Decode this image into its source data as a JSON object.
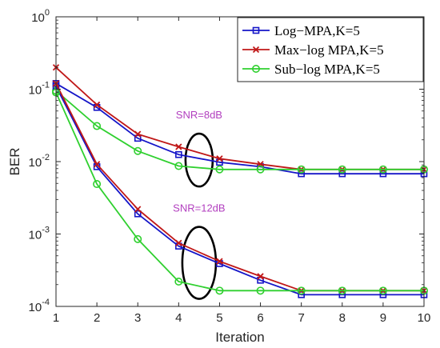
{
  "chart_data": {
    "type": "line",
    "title": "",
    "xlabel": "Iteration",
    "ylabel": "BER",
    "xlim": [
      1,
      10
    ],
    "ylim": [
      0.0001,
      1
    ],
    "yscale": "log",
    "x_ticks": [
      1,
      2,
      3,
      4,
      5,
      6,
      7,
      8,
      9,
      10
    ],
    "y_ticks": [
      {
        "value": 0.0001,
        "mantissa": "10",
        "exponent": "-4"
      },
      {
        "value": 0.001,
        "mantissa": "10",
        "exponent": "-3"
      },
      {
        "value": 0.01,
        "mantissa": "10",
        "exponent": "-2"
      },
      {
        "value": 0.1,
        "mantissa": "10",
        "exponent": "-1"
      },
      {
        "value": 1,
        "mantissa": "10",
        "exponent": "0"
      }
    ],
    "grid": false,
    "legend_position": "top-right",
    "legend": [
      {
        "label": "Log−MPA,K=5",
        "color": "#1515c8",
        "marker": "square"
      },
      {
        "label": "Max−log MPA,K=5",
        "color": "#c01818",
        "marker": "x"
      },
      {
        "label": "Sub−log MPA,K=5",
        "color": "#2fd02f",
        "marker": "circle"
      }
    ],
    "x": [
      1,
      2,
      3,
      4,
      5,
      6,
      7,
      8,
      9,
      10
    ],
    "series": [
      {
        "group": "SNR=8dB",
        "legend_index": 0,
        "color": "#1515c8",
        "marker": "square",
        "values": [
          0.12,
          0.056,
          0.021,
          0.0125,
          0.0098,
          0.0085,
          0.0068,
          0.0068,
          0.0068,
          0.0068
        ]
      },
      {
        "group": "SNR=8dB",
        "legend_index": 1,
        "color": "#c01818",
        "marker": "x",
        "values": [
          0.2,
          0.061,
          0.024,
          0.016,
          0.011,
          0.0092,
          0.0078,
          0.0078,
          0.0078,
          0.0078
        ]
      },
      {
        "group": "SNR=8dB",
        "legend_index": 2,
        "color": "#2fd02f",
        "marker": "circle",
        "values": [
          0.095,
          0.031,
          0.014,
          0.0087,
          0.0078,
          0.0078,
          0.0078,
          0.0078,
          0.0078,
          0.0078
        ]
      },
      {
        "group": "SNR=12dB",
        "legend_index": 0,
        "color": "#1515c8",
        "marker": "square",
        "values": [
          0.11,
          0.0085,
          0.0019,
          0.00068,
          0.00039,
          0.00023,
          0.000145,
          0.000145,
          0.000145,
          0.000145
        ]
      },
      {
        "group": "SNR=12dB",
        "legend_index": 1,
        "color": "#c01818",
        "marker": "x",
        "values": [
          0.12,
          0.0092,
          0.0022,
          0.00075,
          0.00042,
          0.00026,
          0.000165,
          0.000165,
          0.000165,
          0.000165
        ]
      },
      {
        "group": "SNR=12dB",
        "legend_index": 2,
        "color": "#2fd02f",
        "marker": "circle",
        "values": [
          0.09,
          0.0049,
          0.00085,
          0.00022,
          0.000165,
          0.000165,
          0.000165,
          0.000165,
          0.000165,
          0.000165
        ]
      }
    ],
    "annotations": [
      {
        "text": "SNR=8dB",
        "color": "#b23fbf",
        "ellipse_at": {
          "x": 4.5,
          "y": 0.0105
        }
      },
      {
        "text": "SNR=12dB",
        "color": "#b23fbf",
        "ellipse_at": {
          "x": 4.5,
          "y": 0.0004
        }
      }
    ]
  }
}
